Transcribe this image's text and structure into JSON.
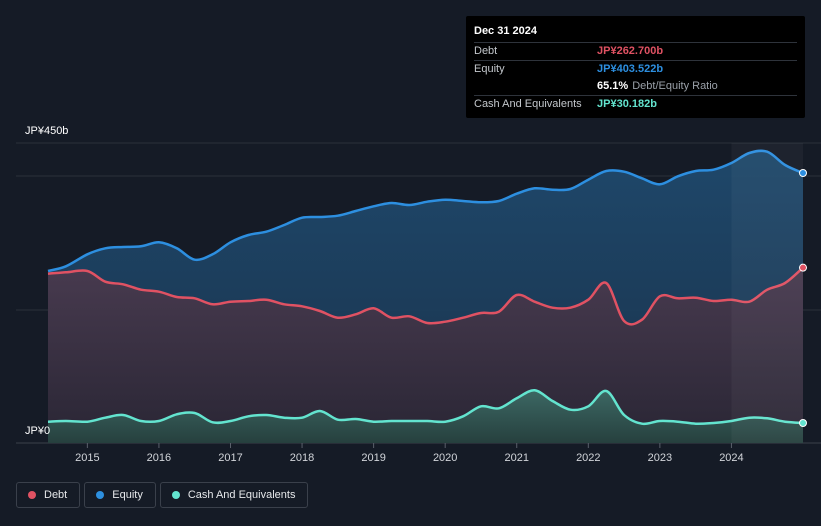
{
  "tooltip": {
    "date": "Dec 31 2024",
    "debt_label": "Debt",
    "debt_value": "JP¥262.700b",
    "equity_label": "Equity",
    "equity_value": "JP¥403.522b",
    "ratio_value": "65.1%",
    "ratio_label": "Debt/Equity Ratio",
    "cash_label": "Cash And Equivalents",
    "cash_value": "JP¥30.182b"
  },
  "legend": [
    {
      "label": "Debt",
      "color": "#e05263"
    },
    {
      "label": "Equity",
      "color": "#2d8fe0"
    },
    {
      "label": "Cash And Equivalents",
      "color": "#63e4cf"
    }
  ],
  "chart_data": {
    "type": "area",
    "title": "",
    "xlabel": "",
    "ylabel": "",
    "y_top_label": "JP¥450b",
    "y_bottom_label": "JP¥0",
    "ylim": [
      0,
      450
    ],
    "xlim": [
      2014.45,
      2025.0
    ],
    "x_ticks": [
      "2015",
      "2016",
      "2017",
      "2018",
      "2019",
      "2020",
      "2021",
      "2022",
      "2023",
      "2024"
    ],
    "x_tick_values": [
      2015,
      2016,
      2017,
      2018,
      2019,
      2020,
      2021,
      2022,
      2023,
      2024
    ],
    "series": [
      {
        "name": "Equity",
        "color": "#2d8fe0",
        "x": [
          2014.45,
          2014.7,
          2015.0,
          2015.25,
          2015.5,
          2015.75,
          2016.0,
          2016.25,
          2016.5,
          2016.75,
          2017.0,
          2017.25,
          2017.5,
          2017.75,
          2018.0,
          2018.25,
          2018.5,
          2018.75,
          2019.0,
          2019.25,
          2019.5,
          2019.75,
          2020.0,
          2020.25,
          2020.5,
          2020.75,
          2021.0,
          2021.25,
          2021.5,
          2021.75,
          2022.0,
          2022.25,
          2022.5,
          2022.75,
          2023.0,
          2023.25,
          2023.5,
          2023.75,
          2024.0,
          2024.25,
          2024.5,
          2024.75,
          2025.0
        ],
        "values": [
          258,
          265,
          283,
          292,
          294,
          295,
          301,
          292,
          275,
          283,
          301,
          312,
          317,
          327,
          338,
          339,
          341,
          348,
          355,
          360,
          357,
          362,
          365,
          363,
          361,
          363,
          374,
          382,
          380,
          381,
          395,
          408,
          407,
          397,
          388,
          400,
          408,
          410,
          420,
          435,
          437,
          417,
          405
        ]
      },
      {
        "name": "Debt",
        "color": "#e05263",
        "x": [
          2014.45,
          2014.7,
          2015.0,
          2015.25,
          2015.5,
          2015.75,
          2016.0,
          2016.25,
          2016.5,
          2016.75,
          2017.0,
          2017.25,
          2017.5,
          2017.75,
          2018.0,
          2018.25,
          2018.5,
          2018.75,
          2019.0,
          2019.25,
          2019.5,
          2019.75,
          2020.0,
          2020.25,
          2020.5,
          2020.75,
          2021.0,
          2021.25,
          2021.5,
          2021.75,
          2022.0,
          2022.25,
          2022.5,
          2022.75,
          2023.0,
          2023.25,
          2023.5,
          2023.75,
          2024.0,
          2024.25,
          2024.5,
          2024.75,
          2025.0
        ],
        "values": [
          254,
          256,
          258,
          242,
          238,
          230,
          227,
          219,
          217,
          208,
          212,
          213,
          215,
          208,
          205,
          198,
          188,
          193,
          202,
          188,
          190,
          180,
          182,
          188,
          195,
          197,
          222,
          212,
          203,
          203,
          215,
          240,
          183,
          185,
          220,
          217,
          218,
          213,
          215,
          212,
          230,
          240,
          263
        ]
      },
      {
        "name": "Cash And Equivalents",
        "color": "#63e4cf",
        "x": [
          2014.45,
          2014.7,
          2015.0,
          2015.25,
          2015.5,
          2015.75,
          2016.0,
          2016.25,
          2016.5,
          2016.75,
          2017.0,
          2017.25,
          2017.5,
          2017.75,
          2018.0,
          2018.25,
          2018.5,
          2018.75,
          2019.0,
          2019.25,
          2019.5,
          2019.75,
          2020.0,
          2020.25,
          2020.5,
          2020.75,
          2021.0,
          2021.25,
          2021.5,
          2021.75,
          2022.0,
          2022.25,
          2022.5,
          2022.75,
          2023.0,
          2023.25,
          2023.5,
          2023.75,
          2024.0,
          2024.25,
          2024.5,
          2024.75,
          2025.0
        ],
        "values": [
          32,
          33,
          32,
          38,
          42,
          33,
          33,
          43,
          45,
          31,
          33,
          40,
          42,
          38,
          38,
          48,
          35,
          36,
          32,
          33,
          33,
          33,
          32,
          40,
          55,
          52,
          67,
          79,
          63,
          50,
          55,
          78,
          42,
          29,
          33,
          32,
          29,
          30,
          33,
          38,
          37,
          32,
          30
        ]
      }
    ]
  }
}
